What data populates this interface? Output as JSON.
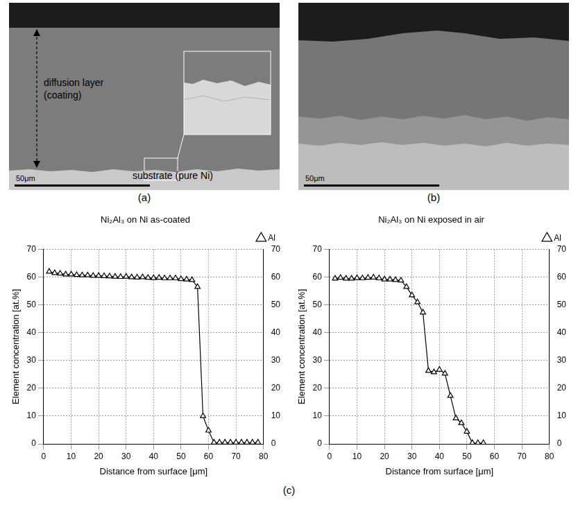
{
  "figure": {
    "panels": [
      {
        "label": "(a)",
        "diffusion_layer_label": [
          "diffusion layer",
          "(coating)"
        ],
        "substrate_label": "substrate (pure Ni)",
        "scale_bar": "50μm"
      },
      {
        "label": "(b)",
        "scale_bar": "50μm"
      }
    ],
    "charts_label": "(c)"
  },
  "chart_data": [
    {
      "type": "line",
      "title": "Ni₂Al₃ on Ni as-coated",
      "x_label": "Distance from surface [μm]",
      "y_label": "Element concentration [at.%]",
      "x": [
        2,
        4,
        6,
        8,
        10,
        12,
        14,
        16,
        18,
        20,
        22,
        24,
        26,
        28,
        30,
        32,
        34,
        36,
        38,
        40,
        42,
        44,
        46,
        48,
        50,
        52,
        54,
        56,
        58,
        60,
        62,
        64,
        66,
        68,
        70,
        72,
        74,
        76,
        78
      ],
      "series": [
        {
          "name": "Al",
          "color": "#000000",
          "marker": "triangle",
          "line_style": "solid",
          "values": [
            62,
            61.5,
            61.3,
            61,
            61,
            60.8,
            60.7,
            60.7,
            60.5,
            60.5,
            60.4,
            60.3,
            60.2,
            60.1,
            60.2,
            60,
            59.9,
            60,
            59.8,
            59.7,
            59.8,
            59.6,
            59.6,
            59.6,
            59.3,
            59.2,
            59,
            56.5,
            10,
            4.8,
            0.5,
            0.5,
            0.5,
            0.5,
            0.5,
            0.5,
            0.5,
            0.5,
            0.5
          ]
        }
      ],
      "xlim": [
        0,
        80
      ],
      "xticks": [
        0,
        10,
        20,
        30,
        40,
        50,
        60,
        70,
        80
      ],
      "ylim": [
        0,
        70
      ],
      "yticks": [
        0,
        10,
        20,
        30,
        40,
        50,
        60,
        70
      ],
      "y2lim": [
        0,
        70
      ],
      "y2ticks": [
        0,
        10,
        20,
        30,
        40,
        50,
        60,
        70
      ],
      "grid": true,
      "legend": "top-right"
    },
    {
      "type": "line",
      "title": "Ni₂Al₃ on Ni exposed in air",
      "x_label": "Distance from surface [μm]",
      "y_label": "Element concentration [at.%]",
      "x": [
        2,
        4,
        6,
        8,
        10,
        12,
        14,
        16,
        18,
        20,
        22,
        24,
        26,
        28,
        30,
        32,
        34,
        36,
        38,
        40,
        42,
        44,
        46,
        48,
        50,
        52,
        54,
        56
      ],
      "series": [
        {
          "name": "Al",
          "color": "#000000",
          "marker": "triangle",
          "line_style": "solid",
          "values": [
            59.5,
            59.8,
            59.5,
            59.5,
            59.7,
            59.6,
            59.8,
            59.9,
            59.6,
            59.2,
            59.2,
            59,
            58.8,
            56.5,
            53.5,
            51,
            47.3,
            26.3,
            25.8,
            26.7,
            25.3,
            17.3,
            9.2,
            7.5,
            4.4,
            0.3,
            0.3,
            0.3
          ]
        }
      ],
      "xlim": [
        0,
        80
      ],
      "xticks": [
        0,
        10,
        20,
        30,
        40,
        50,
        60,
        70,
        80
      ],
      "ylim": [
        0,
        70
      ],
      "yticks": [
        0,
        10,
        20,
        30,
        40,
        50,
        60,
        70
      ],
      "y2lim": [
        0,
        70
      ],
      "y2ticks": [
        0,
        10,
        20,
        30,
        40,
        50,
        60,
        70
      ],
      "grid": true,
      "legend": "top-right"
    }
  ]
}
